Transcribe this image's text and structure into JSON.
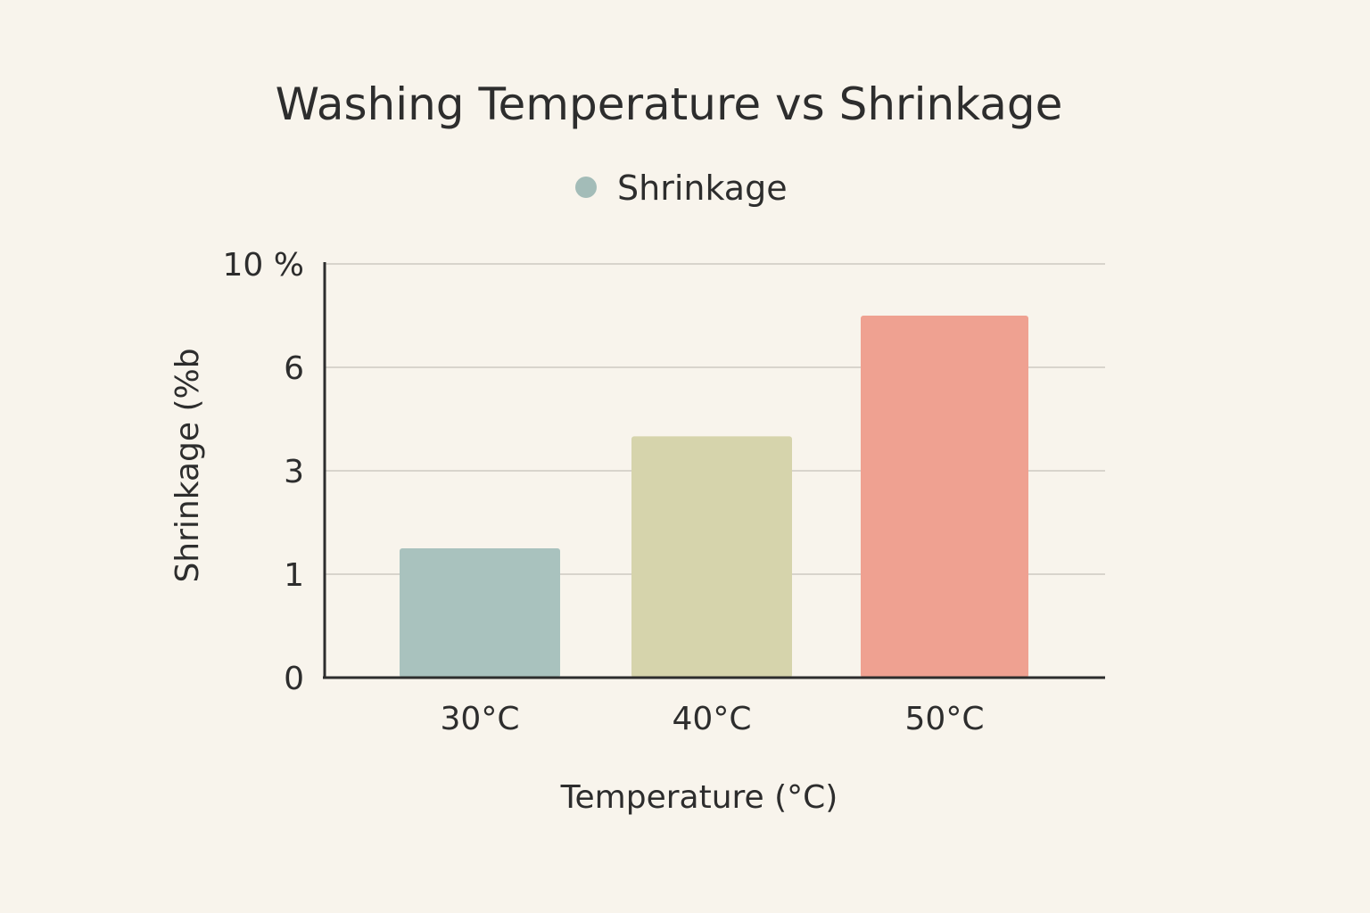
{
  "chart_data": {
    "type": "bar",
    "title": "Washing Temperature vs Shrinkage",
    "categories": [
      "30°C",
      "40°C",
      "50°C"
    ],
    "series": [
      {
        "name": "Shrinkage",
        "values": [
          1.5,
          4.0,
          8.0
        ],
        "colors": [
          "#a9c2be",
          "#d6d4ac",
          "#efa191"
        ]
      }
    ],
    "legend": {
      "label": "Shrinkage",
      "color": "#a3bcb8",
      "placement": "top-center"
    },
    "xlabel": "Temperature (°C)",
    "ylabel": "Shrinkage (%b",
    "yticks": [
      {
        "value": 0,
        "label": "0"
      },
      {
        "value": 1,
        "label": "1"
      },
      {
        "value": 3,
        "label": "3"
      },
      {
        "value": 6,
        "label": "6"
      },
      {
        "value": 10,
        "label": "10 %"
      }
    ],
    "ylim": [
      0,
      10
    ],
    "grid": true
  }
}
